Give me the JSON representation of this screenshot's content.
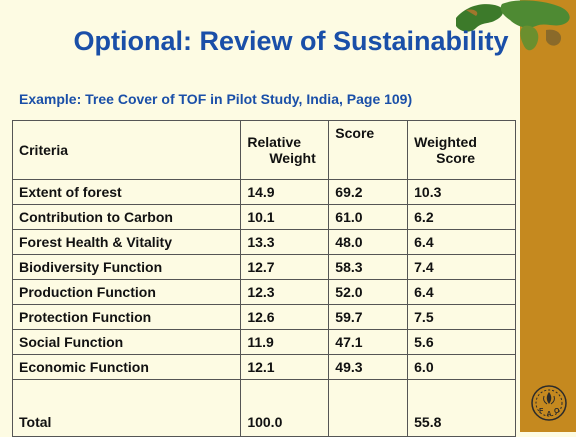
{
  "slide": {
    "title": "Optional: Review of Sustainability",
    "subtitle": "Example: Tree Cover of TOF in Pilot Study, India, Page 109)"
  },
  "table": {
    "headers": {
      "criteria": "Criteria",
      "relative_weight_1": "Relative",
      "relative_weight_2": "Weight",
      "score": "Score",
      "weighted_score_1": "Weighted",
      "weighted_score_2": "Score"
    },
    "rows": [
      {
        "criteria": "Extent of forest",
        "weight": "14.9",
        "score": "69.2",
        "weighted": "10.3"
      },
      {
        "criteria": "Contribution to Carbon",
        "weight": "10.1",
        "score": "61.0",
        "weighted": "6.2"
      },
      {
        "criteria": "Forest Health & Vitality",
        "weight": "13.3",
        "score": "48.0",
        "weighted": "6.4"
      },
      {
        "criteria": "Biodiversity Function",
        "weight": "12.7",
        "score": "58.3",
        "weighted": "7.4"
      },
      {
        "criteria": "Production Function",
        "weight": "12.3",
        "score": "52.0",
        "weighted": "6.4"
      },
      {
        "criteria": "Protection Function",
        "weight": "12.6",
        "score": "59.7",
        "weighted": "7.5"
      },
      {
        "criteria": "Social Function",
        "weight": "11.9",
        "score": "47.1",
        "weighted": "5.6"
      },
      {
        "criteria": "Economic Function",
        "weight": "12.1",
        "score": "49.3",
        "weighted": "6.0"
      }
    ],
    "total": {
      "criteria": "Total",
      "weight": "100.0",
      "score": "",
      "weighted": "55.8"
    }
  },
  "colors": {
    "background": "#fdfbe3",
    "title": "#1a4fa8",
    "sidebar": "#c5891f"
  },
  "icons": [
    "globe-map-icon",
    "fao-logo-icon"
  ]
}
